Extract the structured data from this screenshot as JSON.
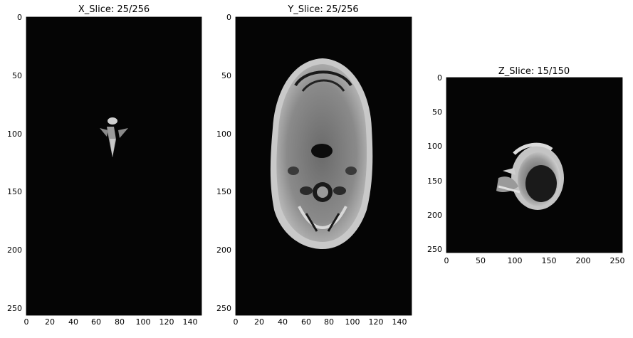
{
  "figure": {
    "panels": [
      {
        "id": "x",
        "title": "X_Slice: 25/256",
        "xticks": [
          "0",
          "20",
          "40",
          "60",
          "80",
          "100",
          "120",
          "140"
        ],
        "yticks": [
          "0",
          "50",
          "100",
          "150",
          "200",
          "250"
        ]
      },
      {
        "id": "y",
        "title": "Y_Slice: 25/256",
        "xticks": [
          "0",
          "20",
          "40",
          "60",
          "80",
          "100",
          "120",
          "140"
        ],
        "yticks": [
          "0",
          "50",
          "100",
          "150",
          "200",
          "250"
        ]
      },
      {
        "id": "z",
        "title": "Z_Slice: 15/150",
        "xticks": [
          "0",
          "50",
          "100",
          "150",
          "200",
          "250"
        ],
        "yticks": [
          "0",
          "50",
          "100",
          "150",
          "200",
          "250"
        ]
      }
    ]
  }
}
